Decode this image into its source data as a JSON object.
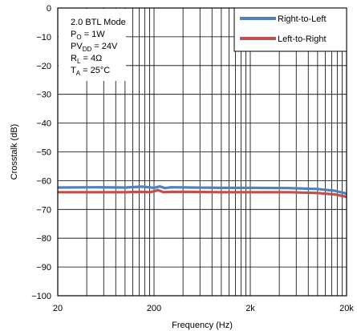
{
  "chart_data": {
    "type": "line",
    "title": "",
    "xlabel": "Frequency (Hz)",
    "ylabel": "Crosstalk (dB)",
    "x_scale": "log",
    "xlim": [
      20,
      20000
    ],
    "ylim": [
      -100,
      0
    ],
    "grid": true,
    "legend_position": "top-right",
    "x_ticks": [
      {
        "value": 20,
        "label": "20"
      },
      {
        "value": 200,
        "label": "200"
      },
      {
        "value": 2000,
        "label": "2k"
      },
      {
        "value": 20000,
        "label": "20k"
      }
    ],
    "y_ticks": [
      {
        "value": 0,
        "label": "0"
      },
      {
        "value": -10,
        "label": "−10"
      },
      {
        "value": -20,
        "label": "−20"
      },
      {
        "value": -30,
        "label": "−30"
      },
      {
        "value": -40,
        "label": "−40"
      },
      {
        "value": -50,
        "label": "−50"
      },
      {
        "value": -60,
        "label": "−60"
      },
      {
        "value": -70,
        "label": "−70"
      },
      {
        "value": -80,
        "label": "−80"
      },
      {
        "value": -90,
        "label": "−90"
      },
      {
        "value": -100,
        "label": "−100"
      }
    ],
    "annotation": {
      "lines": [
        [
          {
            "t": "2.0 BTL Mode"
          }
        ],
        [
          {
            "t": "P"
          },
          {
            "t": "O",
            "sub": true
          },
          {
            "t": " = 1W"
          }
        ],
        [
          {
            "t": "PV"
          },
          {
            "t": "DD",
            "sub": true
          },
          {
            "t": " = 24V"
          }
        ],
        [
          {
            "t": "R"
          },
          {
            "t": "L",
            "sub": true
          },
          {
            "t": " = 4Ω"
          }
        ],
        [
          {
            "t": "T"
          },
          {
            "t": "A",
            "sub": true
          },
          {
            "t": " = 25°C"
          }
        ]
      ]
    },
    "series": [
      {
        "name": "Right-to-Left",
        "color": "#4f81bd",
        "x": [
          20,
          50,
          100,
          150,
          200,
          230,
          260,
          300,
          500,
          1000,
          2000,
          5000,
          10000,
          15000,
          20000
        ],
        "y": [
          -62.4,
          -62.3,
          -62.4,
          -62.1,
          -62.5,
          -62.0,
          -62.6,
          -62.3,
          -62.4,
          -62.5,
          -62.5,
          -62.6,
          -62.9,
          -63.5,
          -64.5
        ]
      },
      {
        "name": "Left-to-Right",
        "color": "#c0504d",
        "x": [
          20,
          50,
          100,
          150,
          180,
          200,
          220,
          250,
          300,
          500,
          1000,
          2000,
          5000,
          10000,
          15000,
          20000
        ],
        "y": [
          -64.0,
          -64.0,
          -64.0,
          -63.9,
          -64.0,
          -63.7,
          -63.3,
          -64.0,
          -63.9,
          -63.9,
          -64.0,
          -64.0,
          -64.0,
          -64.3,
          -64.8,
          -65.6
        ]
      }
    ]
  }
}
